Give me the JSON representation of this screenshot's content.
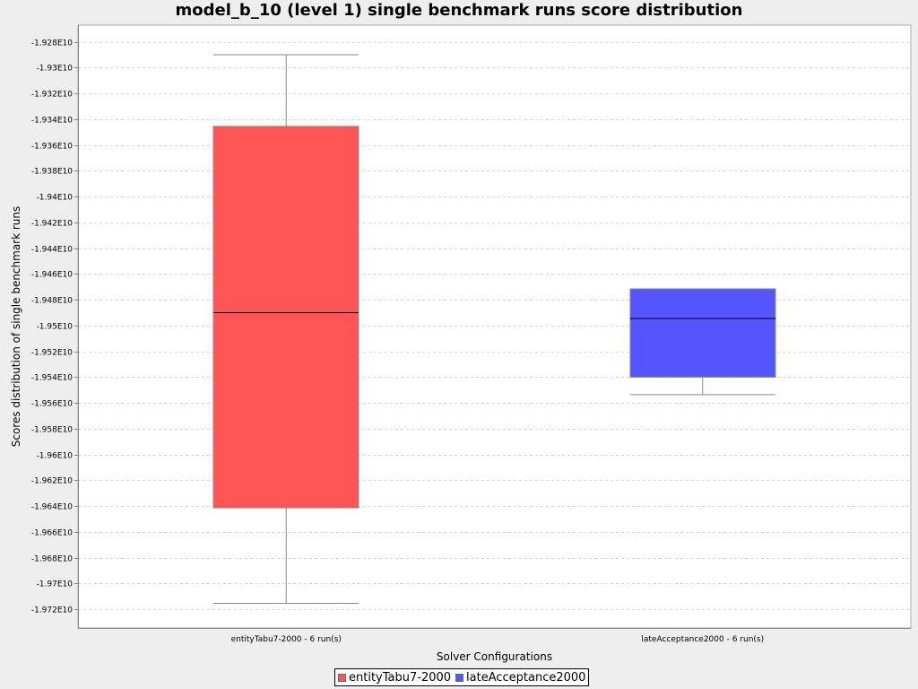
{
  "chart_data": {
    "type": "box",
    "title": "model_b_10 (level 1) single benchmark runs score distribution",
    "xlabel": "Solver Configurations",
    "ylabel": "Scores distribution of single benchmark runs",
    "categories": [
      "entityTabu7-2000 - 6 run(s)",
      "lateAcceptance2000 - 6 run(s)"
    ],
    "series": [
      {
        "name": "entityTabu7-2000",
        "color": "#ff5555",
        "min": -19715400000.0,
        "q1": -19641300000.0,
        "median": -19490000000.0,
        "q3": -19345500000.0,
        "max": -19290000000.0
      },
      {
        "name": "lateAcceptance2000",
        "color": "#5555ff",
        "min": -19553500000.0,
        "q1": -19540000000.0,
        "median": -19494500000.0,
        "q3": -19471500000.0,
        "max": -19471500000.0
      }
    ],
    "ylim": [
      -19734500000.0,
      -19267000000.0
    ],
    "yticks": [
      -19280000000.0,
      -19300000000.0,
      -19320000000.0,
      -19340000000.0,
      -19360000000.0,
      -19380000000.0,
      -19400000000.0,
      -19420000000.0,
      -19440000000.0,
      -19460000000.0,
      -19480000000.0,
      -19500000000.0,
      -19520000000.0,
      -19540000000.0,
      -19560000000.0,
      -19580000000.0,
      -19600000000.0,
      -19620000000.0,
      -19640000000.0,
      -19660000000.0,
      -19680000000.0,
      -19700000000.0,
      -19720000000.0
    ],
    "ytick_labels": [
      "-1.928E10",
      "-1.93E10",
      "-1.932E10",
      "-1.934E10",
      "-1.936E10",
      "-1.938E10",
      "-1.94E10",
      "-1.942E10",
      "-1.944E10",
      "-1.946E10",
      "-1.948E10",
      "-1.95E10",
      "-1.952E10",
      "-1.954E10",
      "-1.956E10",
      "-1.958E10",
      "-1.96E10",
      "-1.962E10",
      "-1.964E10",
      "-1.966E10",
      "-1.968E10",
      "-1.97E10",
      "-1.972E10"
    ],
    "grid": true,
    "legend_position": "bottom"
  }
}
